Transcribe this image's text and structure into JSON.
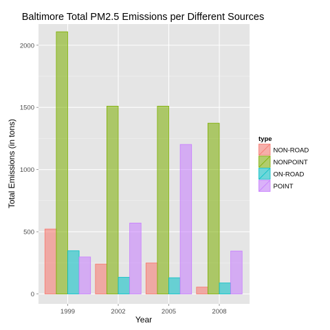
{
  "chart_data": {
    "type": "bar",
    "title": "Baltimore Total PM2.5 Emissions per Different Sources",
    "xlabel": "Year",
    "ylabel": "Total Emissions (in tons)",
    "categories": [
      "1999",
      "2002",
      "2005",
      "2008"
    ],
    "ylim": [
      -80,
      2170
    ],
    "yticks": [
      0,
      500,
      1000,
      1500,
      2000
    ],
    "grid": true,
    "legend": {
      "title": "type",
      "position": "right"
    },
    "series": [
      {
        "name": "NON-ROAD",
        "color": "#F8766D",
        "values": [
          522,
          240,
          249,
          55
        ]
      },
      {
        "name": "NONPOINT",
        "color": "#7CAE00",
        "values": [
          2108,
          1510,
          1510,
          1373
        ]
      },
      {
        "name": "ON-ROAD",
        "color": "#00BFC4",
        "values": [
          347,
          134,
          130,
          88
        ]
      },
      {
        "name": "POINT",
        "color": "#C77CFF",
        "values": [
          297,
          570,
          1202,
          345
        ]
      }
    ]
  }
}
